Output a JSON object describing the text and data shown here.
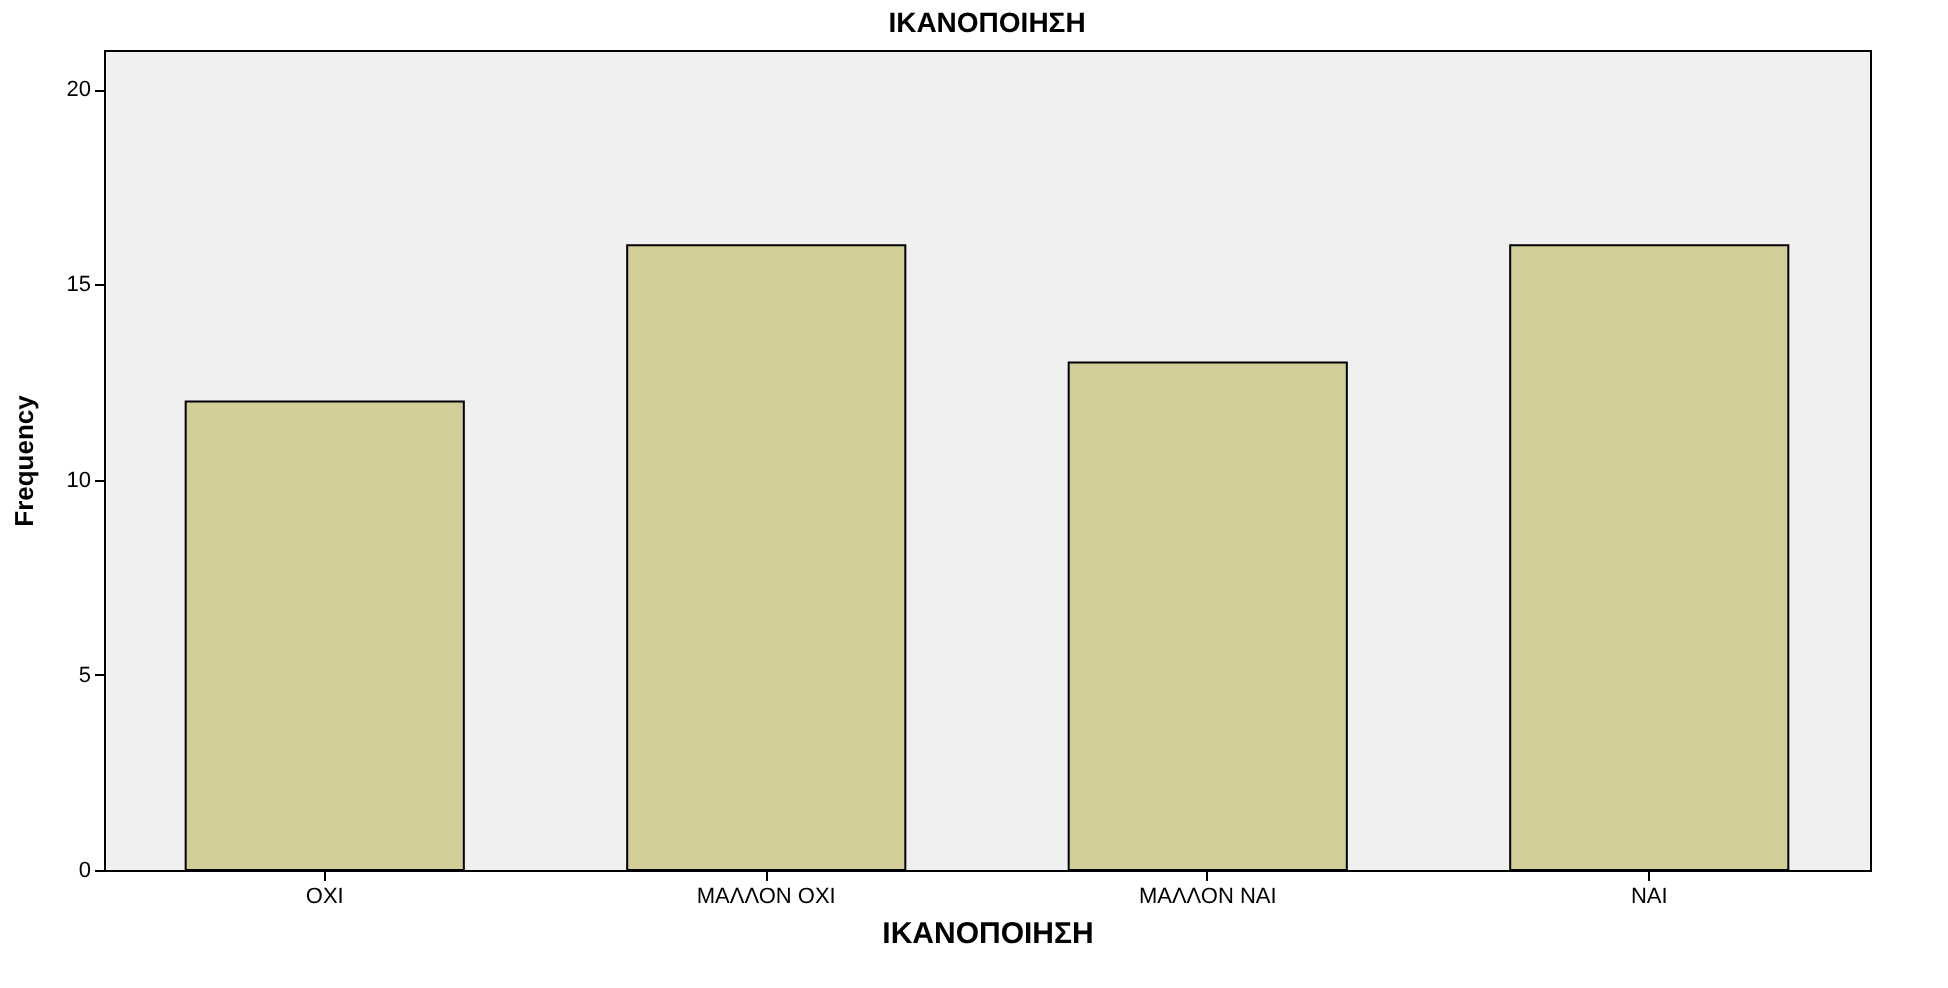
{
  "chart_data": {
    "type": "bar",
    "title": "ΙΚΑΝΟΠΟΙΗΣΗ",
    "xlabel": "ΙΚΑΝΟΠΟΙΗΣΗ",
    "ylabel": "Frequency",
    "categories": [
      "ΟΧΙ",
      "ΜΑΛΛΟΝ ΟΧΙ",
      "ΜΑΛΛΟΝ ΝΑΙ",
      "ΝΑΙ"
    ],
    "values": [
      12,
      16,
      13,
      16
    ],
    "color": "#d3ce98",
    "ylim": [
      0,
      21
    ],
    "yticks": [
      0,
      5,
      10,
      15,
      20
    ],
    "grid": false
  }
}
